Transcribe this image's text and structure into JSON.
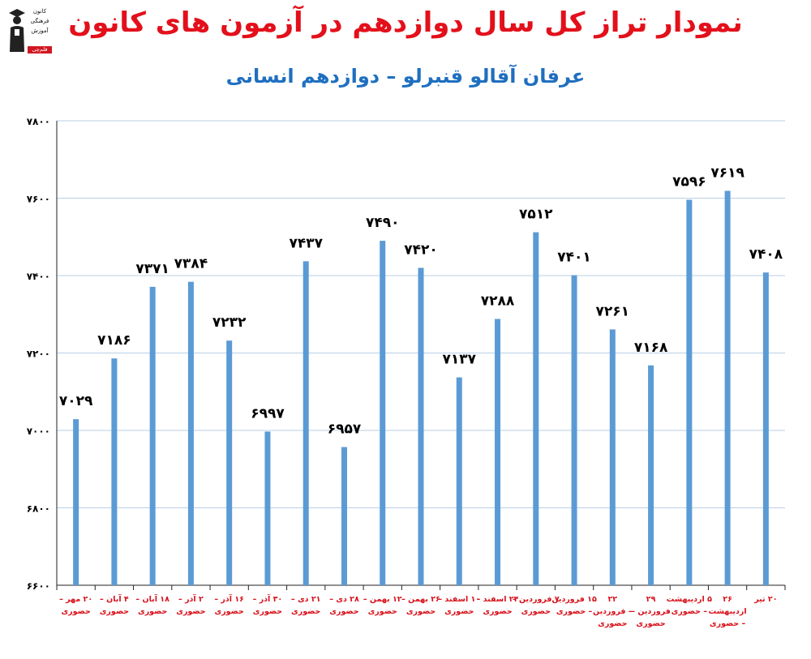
{
  "title": "نمودار تراز کل سال دوازدهم در آزمون های کانون",
  "subtitle": "عرفان آقالو قنبرلو – دوازدهم انسانی",
  "logo": {
    "line1": "کانون",
    "line2": "فرهنگی",
    "line3": "آموزش",
    "line4": "قلم‌چی"
  },
  "colors": {
    "title": "#e3101b",
    "subtitle": "#1f6fc0",
    "bar": "#5b9bd5",
    "grid": "#b9cfe6",
    "label": "#000000",
    "xlabel": "#d8101a"
  },
  "chart_data": {
    "type": "bar",
    "ylim": [
      6600,
      7800
    ],
    "yticks": [
      "۶۶۰۰",
      "۶۸۰۰",
      "۷۰۰۰",
      "۷۲۰۰",
      "۷۴۰۰",
      "۷۶۰۰",
      "۷۸۰۰"
    ],
    "ytick_values": [
      6600,
      6800,
      7000,
      7200,
      7400,
      7600,
      7800
    ],
    "grid": true,
    "legend": "none",
    "categories": [
      [
        "۲۰ مهر –",
        "حضوری"
      ],
      [
        "۴ آبان –",
        "حضوری"
      ],
      [
        "۱۸ آبان –",
        "حضوری"
      ],
      [
        "۲ آذر –",
        "حضوری"
      ],
      [
        "۱۶ آذر –",
        "حضوری"
      ],
      [
        "۳۰ آذر –",
        "حضوری"
      ],
      [
        "۲۱ دی –",
        "حضوری"
      ],
      [
        "۲۸ دی –",
        "حضوری"
      ],
      [
        "۱۲ بهمن –",
        "حضوری"
      ],
      [
        "۲۶ بهمن –",
        "حضوری"
      ],
      [
        "۱۰ اسفند –",
        "حضوری"
      ],
      [
        "۲۴ اسفند –",
        "حضوری"
      ],
      [
        "۷ فروردین –",
        "حضوری"
      ],
      [
        "۱۵ فروردین",
        "– حضوری"
      ],
      [
        "۲۲",
        "– فروردین",
        "حضوری"
      ],
      [
        "۲۹",
        "فروردین –",
        "حضوری"
      ],
      [
        "۵ اردیبهشت",
        "– حضوری"
      ],
      [
        "۲۶",
        "اردیبهشت",
        "– حضوری"
      ],
      [
        "۲۰ تیر"
      ]
    ],
    "values": [
      7029,
      7186,
      7371,
      7384,
      7232,
      6997,
      7437,
      6957,
      7490,
      7420,
      7137,
      7288,
      7512,
      7401,
      7261,
      7168,
      7596,
      7619,
      7408
    ],
    "value_labels": [
      "۷۰۲۹",
      "۷۱۸۶",
      "۷۳۷۱",
      "۷۳۸۴",
      "۷۲۳۲",
      "۶۹۹۷",
      "۷۴۳۷",
      "۶۹۵۷",
      "۷۴۹۰",
      "۷۴۲۰",
      "۷۱۳۷",
      "۷۲۸۸",
      "۷۵۱۲",
      "۷۴۰۱",
      "۷۲۶۱",
      "۷۱۶۸",
      "۷۵۹۶",
      "۷۶۱۹",
      "۷۴۰۸"
    ]
  }
}
